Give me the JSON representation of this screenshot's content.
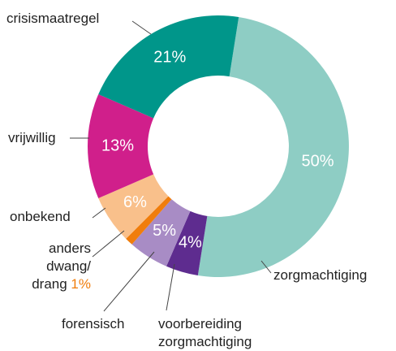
{
  "chart_data": {
    "type": "donut",
    "categories": [
      "zorgmachtiging",
      "voorbereiding zorgmachtiging",
      "forensisch",
      "anders dwang/ drang",
      "onbekend",
      "vrijwillig",
      "crisismaatregel"
    ],
    "values": [
      50,
      4,
      5,
      1,
      6,
      13,
      21
    ],
    "value_labels": [
      "50%",
      "4%",
      "5%",
      "1%",
      "6%",
      "13%",
      "21%"
    ],
    "colors": [
      "#8ecdc4",
      "#5e2c8f",
      "#a88cc5",
      "#f07d0c",
      "#f9c08b",
      "#d01f8b",
      "#00968a"
    ]
  }
}
